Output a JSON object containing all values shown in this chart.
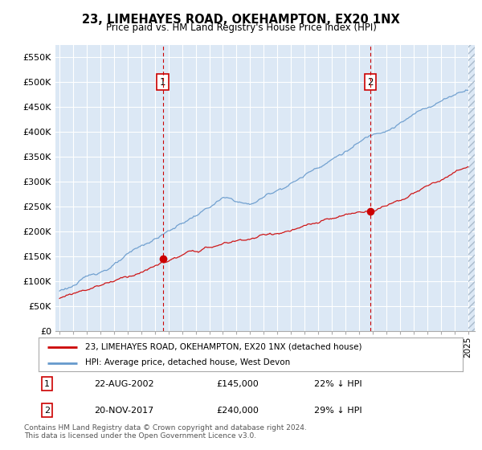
{
  "title": "23, LIMEHAYES ROAD, OKEHAMPTON, EX20 1NX",
  "subtitle": "Price paid vs. HM Land Registry's House Price Index (HPI)",
  "ylabel_ticks": [
    "£0",
    "£50K",
    "£100K",
    "£150K",
    "£200K",
    "£250K",
    "£300K",
    "£350K",
    "£400K",
    "£450K",
    "£500K",
    "£550K"
  ],
  "ytick_values": [
    0,
    50000,
    100000,
    150000,
    200000,
    250000,
    300000,
    350000,
    400000,
    450000,
    500000,
    550000
  ],
  "ylim": [
    0,
    575000
  ],
  "hpi_color": "#6699cc",
  "price_color": "#cc0000",
  "vline_color": "#cc0000",
  "plot_bg": "#dce8f5",
  "grid_color": "#ffffff",
  "transaction1": {
    "date": "22-AUG-2002",
    "price": 145000,
    "label": "1",
    "pct": "22% ↓ HPI"
  },
  "transaction2": {
    "date": "20-NOV-2017",
    "price": 240000,
    "label": "2",
    "pct": "29% ↓ HPI"
  },
  "legend_line1": "23, LIMEHAYES ROAD, OKEHAMPTON, EX20 1NX (detached house)",
  "legend_line2": "HPI: Average price, detached house, West Devon",
  "footnote": "Contains HM Land Registry data © Crown copyright and database right 2024.\nThis data is licensed under the Open Government Licence v3.0.",
  "x_start_year": 1995,
  "x_end_year": 2025
}
